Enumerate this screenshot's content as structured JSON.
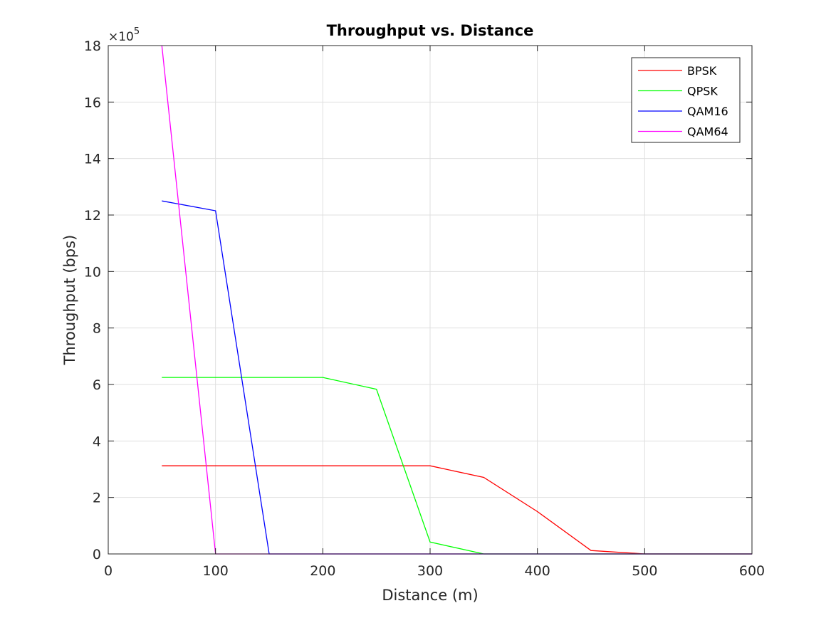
{
  "chart_data": {
    "type": "line",
    "title": "Throughput vs. Distance",
    "xlabel": "Distance (m)",
    "ylabel": "Throughput (bps)",
    "exponent_label": "×10",
    "exponent_power": "5",
    "xlim": [
      0,
      600
    ],
    "ylim": [
      0,
      18
    ],
    "x_ticks": [
      0,
      100,
      200,
      300,
      400,
      500,
      600
    ],
    "y_ticks": [
      0,
      2,
      4,
      6,
      8,
      10,
      12,
      14,
      16,
      18
    ],
    "grid": true,
    "legend_position": "top-right",
    "x": [
      50,
      100,
      150,
      200,
      250,
      300,
      350,
      400,
      450,
      500,
      550,
      600
    ],
    "series": [
      {
        "name": "BPSK",
        "color": "#ff0000",
        "values": [
          3.12,
          3.12,
          3.12,
          3.12,
          3.12,
          3.12,
          2.71,
          1.5,
          0.12,
          0,
          0,
          0
        ]
      },
      {
        "name": "QPSK",
        "color": "#00ff00",
        "values": [
          6.25,
          6.25,
          6.25,
          6.25,
          5.83,
          0.42,
          0,
          0,
          0,
          0,
          0,
          0
        ]
      },
      {
        "name": "QAM16",
        "color": "#0000ff",
        "values": [
          12.5,
          12.15,
          0,
          0,
          0,
          0,
          0,
          0,
          0,
          0,
          0,
          0
        ]
      },
      {
        "name": "QAM64",
        "color": "#ff00ff",
        "values": [
          18.0,
          0,
          0,
          0,
          0,
          0,
          0,
          0,
          0,
          0,
          0,
          0
        ]
      }
    ]
  }
}
